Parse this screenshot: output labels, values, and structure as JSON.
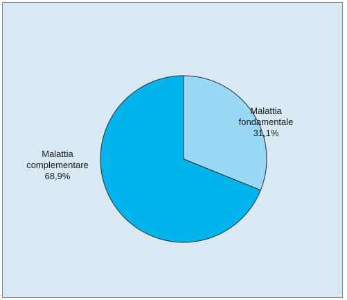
{
  "chart_data": {
    "type": "pie",
    "title": "",
    "slices": [
      {
        "name_line1": "Malattia",
        "name_line2": "fondamentale",
        "value": 31.1,
        "value_label": "31,1%",
        "color": "#99d9f5"
      },
      {
        "name_line1": "Malattia",
        "name_line2": "complementare",
        "value": 68.9,
        "value_label": "68,9%",
        "color": "#00b5ec"
      }
    ],
    "start_angle_deg": 0,
    "direction": "clockwise",
    "background_color": "#d9e9f3",
    "edge_color": "#2a2a2a"
  }
}
